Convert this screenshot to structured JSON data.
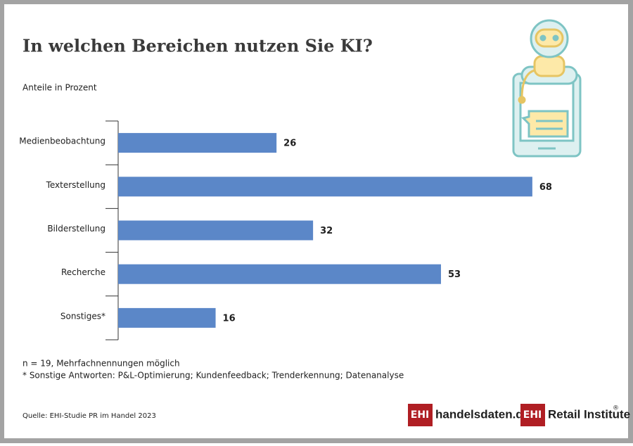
{
  "chart_data": {
    "type": "hbar",
    "title": "In welchen Bereichen nutzen Sie KI?",
    "subtitle": "Anteile in Prozent",
    "categories": [
      "Medienbeobachtung",
      "Texterstellung",
      "Bilderstellung",
      "Recherche",
      "Sonstiges*"
    ],
    "values": [
      26,
      68,
      32,
      53,
      16
    ],
    "color": "#5b87c8",
    "notes": [
      "n = 19, Mehrfachnennungen möglich",
      "* Sonstige Antworten: P&L-Optimierung; Kundenfeedback; Trenderkennung; Datenanalyse"
    ],
    "source": "Quelle: EHI-Studie PR im Handel 2023"
  },
  "logos": [
    {
      "mark": "EHI",
      "text": "handelsdaten.de"
    },
    {
      "mark": "EHI",
      "text": "Retail Institute",
      "sup": "®"
    }
  ]
}
